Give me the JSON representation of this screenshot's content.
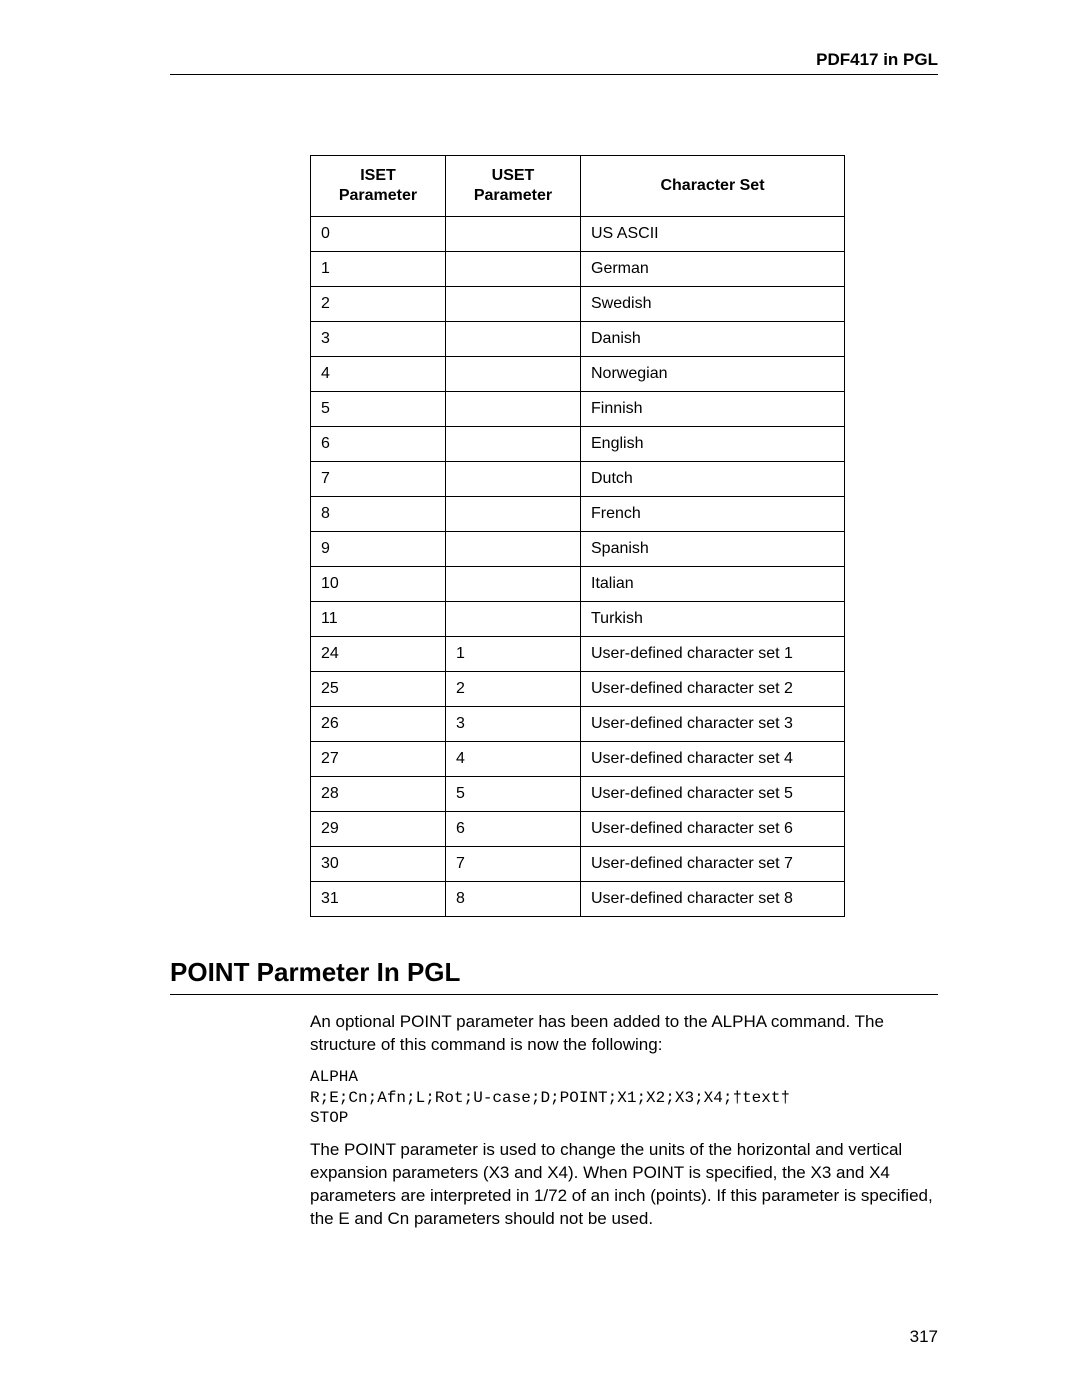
{
  "header": {
    "running_head": "PDF417 in PGL"
  },
  "table": {
    "columns": {
      "iset_line1": "ISET",
      "iset_line2": "Parameter",
      "uset_line1": "USET",
      "uset_line2": "Parameter",
      "charset": "Character Set"
    },
    "rows": [
      {
        "iset": "0",
        "uset": "",
        "cs": "US ASCII"
      },
      {
        "iset": "1",
        "uset": "",
        "cs": "German"
      },
      {
        "iset": "2",
        "uset": "",
        "cs": "Swedish"
      },
      {
        "iset": "3",
        "uset": "",
        "cs": "Danish"
      },
      {
        "iset": "4",
        "uset": "",
        "cs": "Norwegian"
      },
      {
        "iset": "5",
        "uset": "",
        "cs": "Finnish"
      },
      {
        "iset": "6",
        "uset": "",
        "cs": "English"
      },
      {
        "iset": "7",
        "uset": "",
        "cs": "Dutch"
      },
      {
        "iset": "8",
        "uset": "",
        "cs": "French"
      },
      {
        "iset": "9",
        "uset": "",
        "cs": "Spanish"
      },
      {
        "iset": "10",
        "uset": "",
        "cs": "Italian"
      },
      {
        "iset": "11",
        "uset": "",
        "cs": "Turkish"
      },
      {
        "iset": "24",
        "uset": "1",
        "cs": "User-defined character set 1"
      },
      {
        "iset": "25",
        "uset": "2",
        "cs": "User-defined character set 2"
      },
      {
        "iset": "26",
        "uset": "3",
        "cs": "User-defined character set 3"
      },
      {
        "iset": "27",
        "uset": "4",
        "cs": "User-defined character set 4"
      },
      {
        "iset": "28",
        "uset": "5",
        "cs": "User-defined character set 5"
      },
      {
        "iset": "29",
        "uset": "6",
        "cs": "User-defined character set 6"
      },
      {
        "iset": "30",
        "uset": "7",
        "cs": "User-defined character set 7"
      },
      {
        "iset": "31",
        "uset": "8",
        "cs": "User-defined character set 8"
      }
    ]
  },
  "section": {
    "title": "POINT Parmeter In PGL",
    "intro": "An optional POINT parameter has been added to the ALPHA command. The structure of this command is now the following:",
    "code": "ALPHA\nR;E;Cn;Afn;L;Rot;U-case;D;POINT;X1;X2;X3;X4;†text†\nSTOP",
    "para2": "The POINT parameter is used to change the units of the horizontal and vertical expansion parameters (X3 and X4). When POINT is specified, the X3 and X4 parameters are interpreted in 1/72 of an inch (points). If this parameter is specified, the E and Cn parameters should not be used."
  },
  "page_number": "317"
}
